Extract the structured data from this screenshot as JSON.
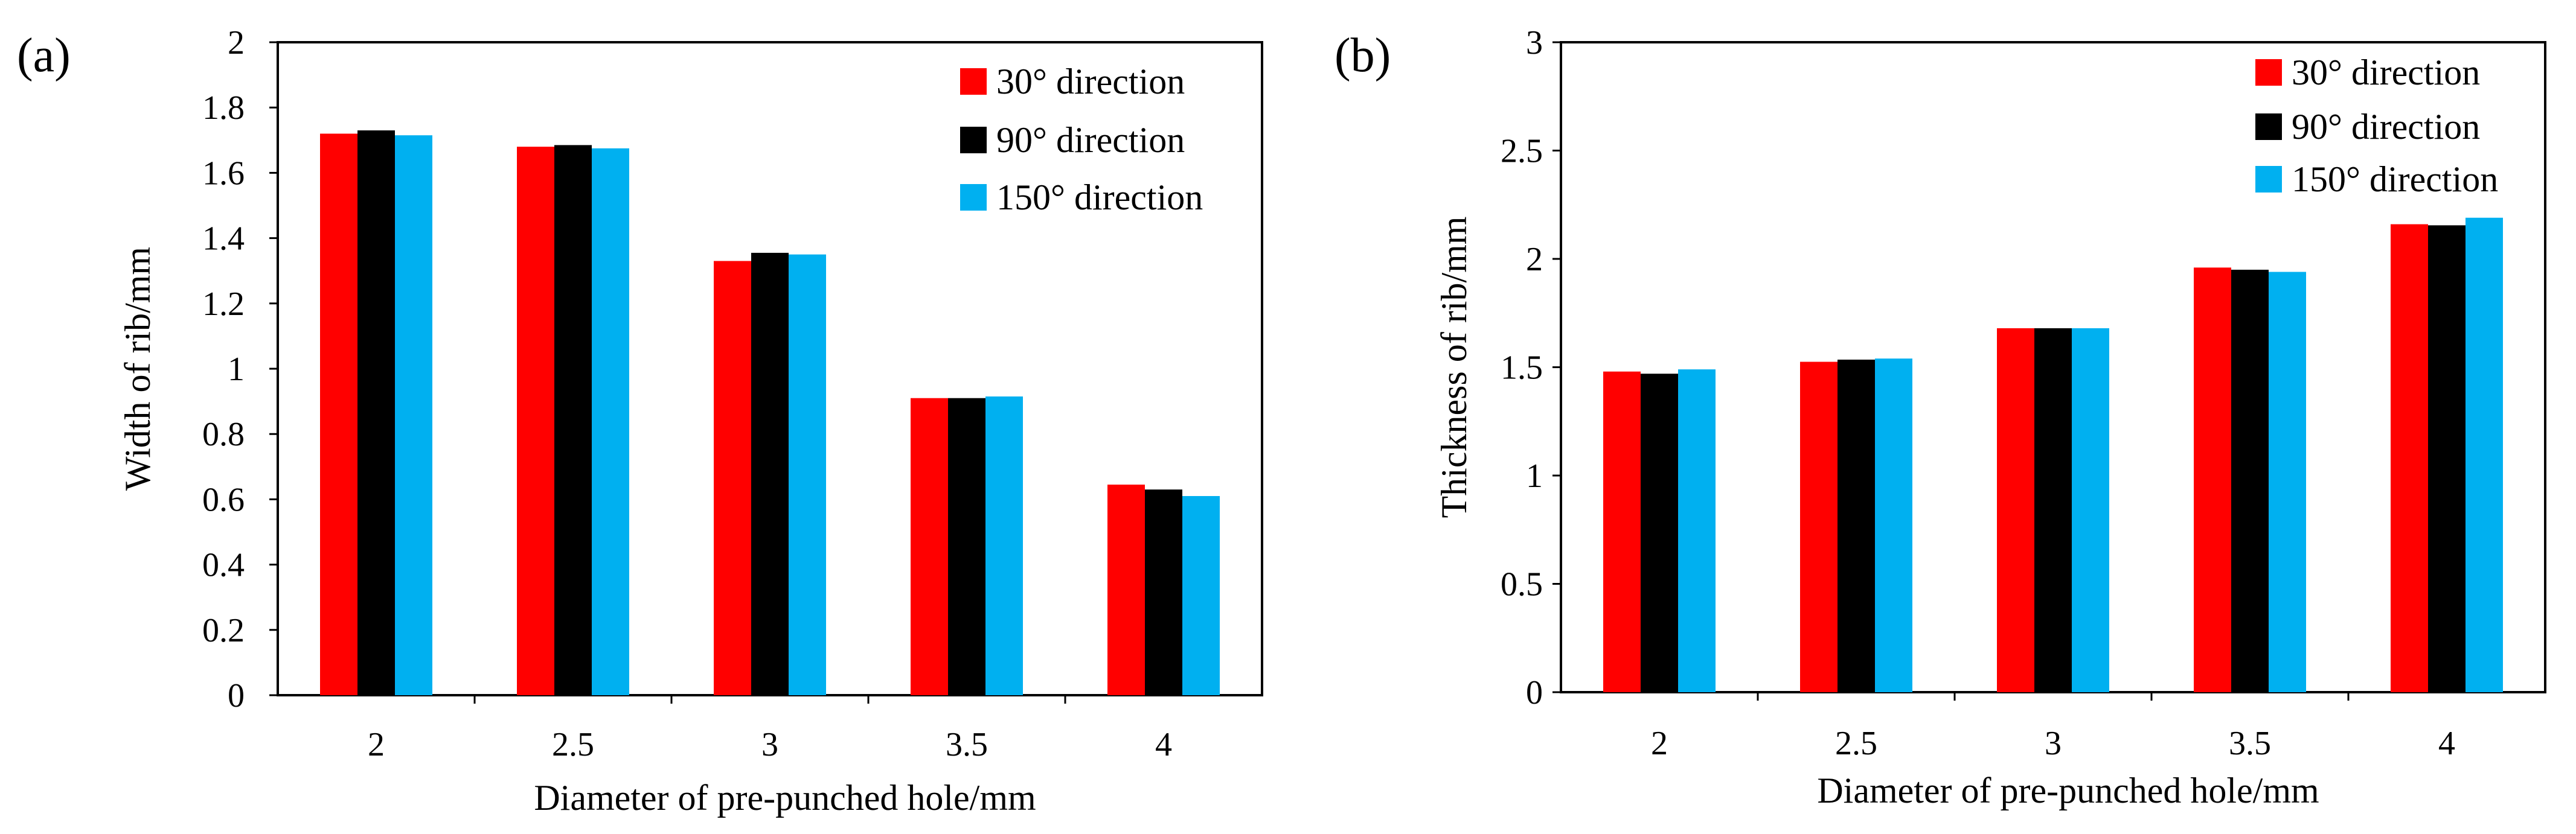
{
  "chart_data": [
    {
      "type": "bar",
      "panel_label": "(a)",
      "title": "",
      "xlabel": "Diameter of pre-punched hole/mm",
      "ylabel": "Width of rib/mm",
      "categories": [
        "2",
        "2.5",
        "3",
        "3.5",
        "4"
      ],
      "ylim": [
        0,
        2
      ],
      "yticks": [
        "0",
        "0.2",
        "0.4",
        "0.6",
        "0.8",
        "1",
        "1.2",
        "1.4",
        "1.6",
        "1.8",
        "2"
      ],
      "grid": false,
      "legend_position": "top-right",
      "series": [
        {
          "name": "30° direction",
          "color": "#ff0000",
          "values": [
            1.72,
            1.68,
            1.33,
            0.91,
            0.645
          ]
        },
        {
          "name": "90° direction",
          "color": "#000000",
          "values": [
            1.73,
            1.685,
            1.355,
            0.91,
            0.63
          ]
        },
        {
          "name": "150° direction",
          "color": "#00b0f0",
          "values": [
            1.715,
            1.675,
            1.35,
            0.915,
            0.61
          ]
        }
      ]
    },
    {
      "type": "bar",
      "panel_label": "(b)",
      "title": "",
      "xlabel": "Diameter of pre-punched hole/mm",
      "ylabel": "Thickness of rib/mm",
      "categories": [
        "2",
        "2.5",
        "3",
        "3.5",
        "4"
      ],
      "ylim": [
        0,
        3
      ],
      "yticks": [
        "0",
        "0.5",
        "1",
        "1.5",
        "2",
        "2.5",
        "3"
      ],
      "grid": false,
      "legend_position": "top-right",
      "series": [
        {
          "name": "30° direction",
          "color": "#ff0000",
          "values": [
            1.48,
            1.525,
            1.68,
            1.96,
            2.16
          ]
        },
        {
          "name": "90° direction",
          "color": "#000000",
          "values": [
            1.47,
            1.535,
            1.68,
            1.95,
            2.155
          ]
        },
        {
          "name": "150° direction",
          "color": "#00b0f0",
          "values": [
            1.49,
            1.54,
            1.68,
            1.94,
            2.19
          ]
        }
      ]
    }
  ]
}
